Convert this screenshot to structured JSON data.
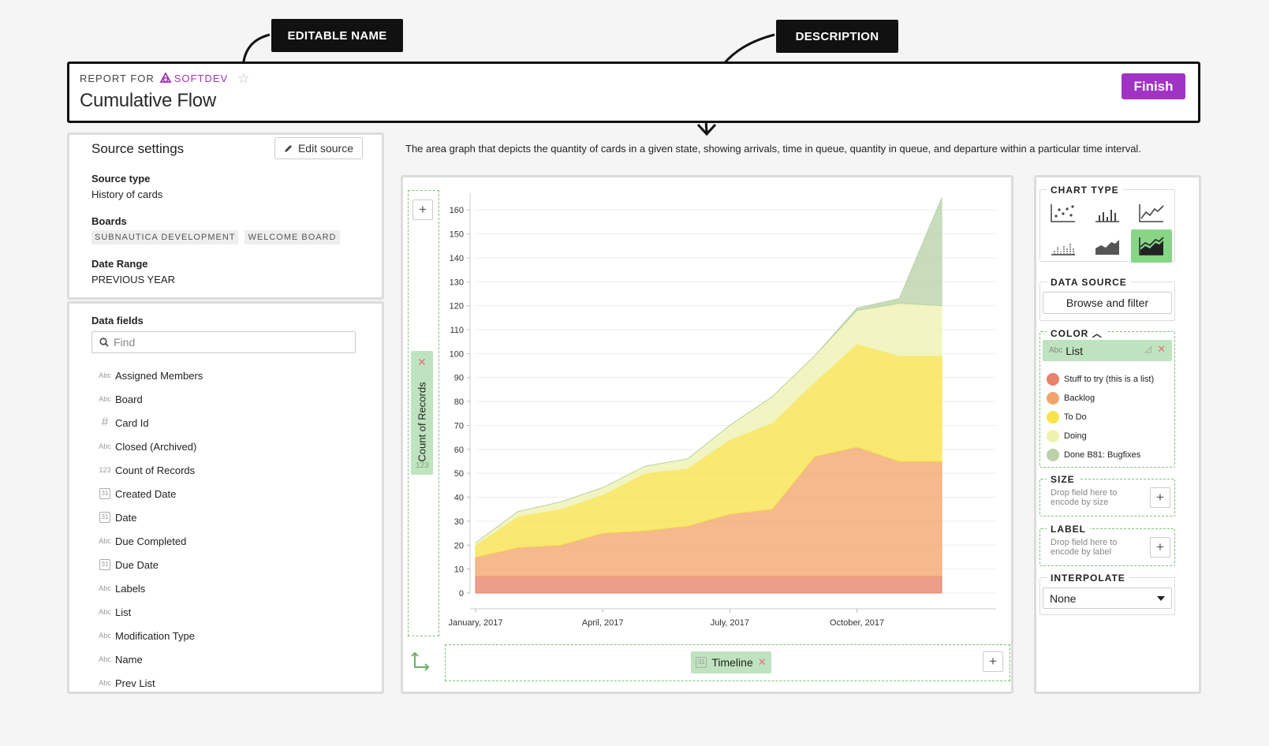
{
  "annotations": {
    "editable_name": "EDITABLE NAME",
    "description": "DESCRIPTION"
  },
  "header": {
    "report_for": "REPORT FOR",
    "brand": "SOFTDEV",
    "title": "Cumulative Flow",
    "finish_label": "Finish",
    "brand_color": "#a233b7"
  },
  "source": {
    "title": "Source settings",
    "edit_label": "Edit source",
    "type_label": "Source type",
    "type_value": "History of cards",
    "boards_label": "Boards",
    "boards": [
      "SUBNAUTICA DEVELOPMENT",
      "WELCOME BOARD"
    ],
    "date_label": "Date Range",
    "date_value": "PREVIOUS YEAR"
  },
  "fields": {
    "title": "Data fields",
    "find_placeholder": "Find",
    "items": [
      {
        "icon": "abc-icon",
        "label": "Assigned Members"
      },
      {
        "icon": "abc-icon",
        "label": "Board"
      },
      {
        "icon": "hash-icon",
        "label": "Card Id"
      },
      {
        "icon": "abc-icon",
        "label": "Closed (Archived)"
      },
      {
        "icon": "123-icon",
        "label": "Count of Records"
      },
      {
        "icon": "calendar-icon",
        "label": "Created Date"
      },
      {
        "icon": "calendar-icon",
        "label": "Date"
      },
      {
        "icon": "abc-icon",
        "label": "Due Completed"
      },
      {
        "icon": "calendar-icon",
        "label": "Due Date"
      },
      {
        "icon": "abc-icon",
        "label": "Labels"
      },
      {
        "icon": "abc-icon",
        "label": "List"
      },
      {
        "icon": "abc-icon",
        "label": "Modification Type"
      },
      {
        "icon": "abc-icon",
        "label": "Name"
      },
      {
        "icon": "abc-icon",
        "label": "Prev List"
      }
    ]
  },
  "description": "The area graph that depicts the quantity of cards in a given state, showing arrivals, time in queue, quantity in queue, and departure within a particular time interval.",
  "encodings": {
    "y_field": "Count of Records",
    "y_type": "123",
    "x_field": "Timeline",
    "x_type": "31"
  },
  "chart_data": {
    "type": "area",
    "stacked": true,
    "x": [
      "2017-01",
      "2017-02",
      "2017-03",
      "2017-04",
      "2017-05",
      "2017-06",
      "2017-07",
      "2017-08",
      "2017-09",
      "2017-10",
      "2017-11",
      "2017-12"
    ],
    "x_tick_labels": [
      "January, 2017",
      "April, 2017",
      "July, 2017",
      "October, 2017"
    ],
    "y_ticks": [
      0,
      10,
      20,
      30,
      40,
      50,
      60,
      70,
      80,
      90,
      100,
      110,
      120,
      130,
      140,
      150,
      160
    ],
    "ylim": [
      0,
      165
    ],
    "ylabel": "Count of Records",
    "xlabel": "Timeline",
    "grid": true,
    "series": [
      {
        "name": "Stuff to try (this is a list)",
        "color": "#e8826a",
        "values": [
          7,
          7,
          7,
          7,
          7,
          7,
          7,
          7,
          7,
          7,
          7,
          7
        ]
      },
      {
        "name": "Backlog",
        "color": "#f2a56b",
        "values": [
          8,
          12,
          13,
          18,
          19,
          21,
          26,
          28,
          50,
          54,
          48,
          48
        ]
      },
      {
        "name": "To Do",
        "color": "#f7e34a",
        "values": [
          5,
          13,
          15,
          16,
          24,
          24,
          31,
          36,
          31,
          43,
          44,
          44
        ]
      },
      {
        "name": "Doing",
        "color": "#eef2b0",
        "values": [
          1,
          2,
          3,
          3,
          3,
          4,
          6,
          11,
          11,
          14,
          22,
          21
        ]
      },
      {
        "name": "Done B81: Bugfixes",
        "color": "#b9d2a8",
        "values": [
          0,
          0,
          0,
          0,
          0,
          0,
          0,
          0,
          0,
          1,
          2,
          45
        ]
      }
    ]
  },
  "right": {
    "chart_type_title": "CHART TYPE",
    "chart_types": [
      "scatter-icon",
      "bar-icon",
      "line-icon",
      "tick-icon",
      "area-icon",
      "stacked-area-icon"
    ],
    "active_chart_type": "stacked-area-icon",
    "data_source_title": "DATA SOURCE",
    "browse_label": "Browse and filter",
    "color_title": "COLOR",
    "color_field": "List",
    "color_field_type": "Abc",
    "size_title": "SIZE",
    "size_hint": "Drop field here to encode by size",
    "label_title": "LABEL",
    "label_hint": "Drop field here to encode by label",
    "interpolate_title": "INTERPOLATE",
    "interpolate_value": "None",
    "accent_color": "#86d686"
  }
}
